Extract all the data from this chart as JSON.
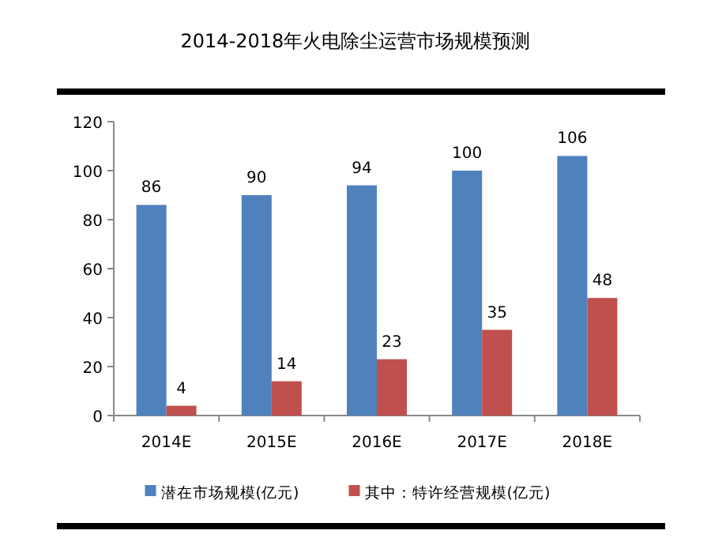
{
  "chart_data": {
    "type": "bar",
    "title": "2014-2018年火电除尘运营市场规模预测",
    "categories": [
      "2014E",
      "2015E",
      "2016E",
      "2017E",
      "2018E"
    ],
    "series": [
      {
        "name": "潜在市场规模(亿元)",
        "color": "#4f81bd",
        "values": [
          86,
          90,
          94,
          100,
          106
        ]
      },
      {
        "name": "其中：特许经营规模(亿元)",
        "color": "#c0504d",
        "values": [
          4,
          14,
          23,
          35,
          48
        ]
      }
    ],
    "ylim": [
      0,
      120
    ],
    "yticks": [
      0,
      20,
      40,
      60,
      80,
      100,
      120
    ],
    "data_labels": true,
    "grid": false,
    "legend": "bottom"
  }
}
